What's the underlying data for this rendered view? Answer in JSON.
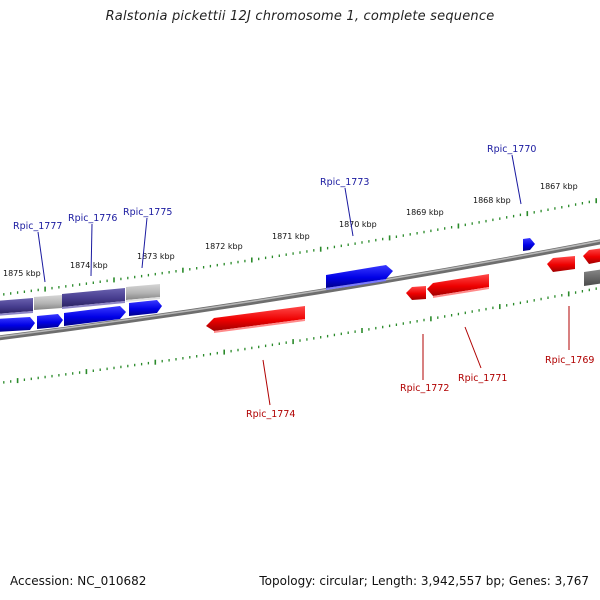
{
  "title": "Ralstonia pickettii 12J chromosome 1, complete sequence",
  "footer": {
    "accession": "Accession: NC_010682",
    "summary": "Topology: circular; Length: 3,942,557 bp; Genes: 3,767"
  },
  "colors": {
    "forward_gene": "#0000ee",
    "reverse_gene": "#ee0000",
    "hypothetical_gene": "#443a88",
    "pseudo_gene": "#b4b4b4",
    "backbone": "#8c8c8c",
    "scale_ticks": "#2a8a2a",
    "forward_label": "#1a1aa0",
    "reverse_label": "#b00000"
  },
  "scale": {
    "ticks": [
      {
        "label": "1875 kbp"
      },
      {
        "label": "1874 kbp"
      },
      {
        "label": "1873 kbp"
      },
      {
        "label": "1872 kbp"
      },
      {
        "label": "1871 kbp"
      },
      {
        "label": "1870 kbp"
      },
      {
        "label": "1869 kbp"
      },
      {
        "label": "1868 kbp"
      },
      {
        "label": "1867 kbp"
      }
    ]
  },
  "genes": [
    {
      "name": "Rpic_1777",
      "strand": "forward"
    },
    {
      "name": "Rpic_1776",
      "strand": "forward"
    },
    {
      "name": "Rpic_1775",
      "strand": "forward"
    },
    {
      "name": "Rpic_1774",
      "strand": "reverse"
    },
    {
      "name": "Rpic_1773",
      "strand": "forward"
    },
    {
      "name": "Rpic_1772",
      "strand": "reverse"
    },
    {
      "name": "Rpic_1771",
      "strand": "reverse"
    },
    {
      "name": "Rpic_1770",
      "strand": "forward"
    },
    {
      "name": "Rpic_1769",
      "strand": "reverse"
    }
  ]
}
